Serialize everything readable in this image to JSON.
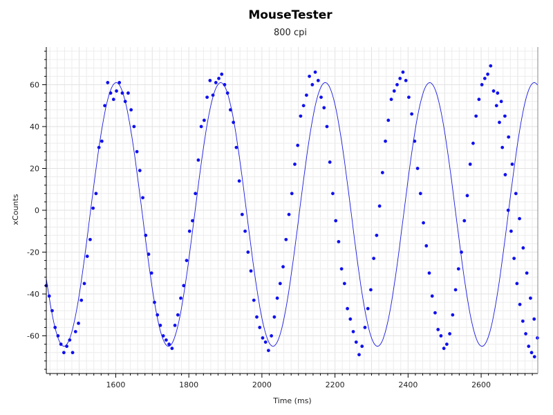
{
  "chart_data": {
    "type": "scatter",
    "title": "MouseTester",
    "subtitle": "800 cpi",
    "xlabel": "Time (ms)",
    "ylabel": "xCounts",
    "xlim": [
      1410,
      2755
    ],
    "ylim": [
      -78,
      78
    ],
    "x_ticks": [
      1600,
      1800,
      2000,
      2200,
      2400,
      2600
    ],
    "y_ticks": [
      -60,
      -40,
      -20,
      0,
      20,
      40,
      60
    ],
    "grid": true,
    "legend": "none",
    "colors": {
      "points": "#1010ee",
      "line": "#1818e0",
      "grid": "#ececec",
      "axis": "#000000"
    },
    "series": [
      {
        "fit_start_x": 1410,
        "fit_amplitude": 63,
        "fit_offset": -2,
        "fit_period_ms": 286,
        "fit_phase_rad": 3.65,
        "fit_step_ms": 3,
        "points": [
          [
            1410,
            -36
          ],
          [
            1418,
            -41
          ],
          [
            1426,
            -48
          ],
          [
            1434,
            -56
          ],
          [
            1442,
            -60
          ],
          [
            1450,
            -64
          ],
          [
            1458,
            -68
          ],
          [
            1466,
            -65
          ],
          [
            1474,
            -62
          ],
          [
            1482,
            -68
          ],
          [
            1490,
            -58
          ],
          [
            1498,
            -54
          ],
          [
            1506,
            -43
          ],
          [
            1514,
            -35
          ],
          [
            1522,
            -22
          ],
          [
            1530,
            -14
          ],
          [
            1538,
            1
          ],
          [
            1546,
            8
          ],
          [
            1554,
            30
          ],
          [
            1562,
            33
          ],
          [
            1570,
            50
          ],
          [
            1578,
            61
          ],
          [
            1586,
            56
          ],
          [
            1594,
            53
          ],
          [
            1602,
            57
          ],
          [
            1610,
            61
          ],
          [
            1618,
            56
          ],
          [
            1626,
            52
          ],
          [
            1634,
            56
          ],
          [
            1642,
            48
          ],
          [
            1650,
            40
          ],
          [
            1658,
            28
          ],
          [
            1666,
            19
          ],
          [
            1674,
            6
          ],
          [
            1682,
            -12
          ],
          [
            1690,
            -21
          ],
          [
            1698,
            -30
          ],
          [
            1706,
            -44
          ],
          [
            1714,
            -50
          ],
          [
            1722,
            -55
          ],
          [
            1730,
            -60
          ],
          [
            1738,
            -62
          ],
          [
            1746,
            -64
          ],
          [
            1754,
            -66
          ],
          [
            1762,
            -55
          ],
          [
            1770,
            -50
          ],
          [
            1778,
            -42
          ],
          [
            1786,
            -36
          ],
          [
            1794,
            -24
          ],
          [
            1802,
            -10
          ],
          [
            1810,
            -5
          ],
          [
            1818,
            8
          ],
          [
            1826,
            24
          ],
          [
            1834,
            40
          ],
          [
            1842,
            43
          ],
          [
            1850,
            54
          ],
          [
            1858,
            62
          ],
          [
            1866,
            55
          ],
          [
            1874,
            61
          ],
          [
            1882,
            63
          ],
          [
            1890,
            65
          ],
          [
            1898,
            60
          ],
          [
            1906,
            56
          ],
          [
            1914,
            48
          ],
          [
            1922,
            42
          ],
          [
            1930,
            30
          ],
          [
            1938,
            14
          ],
          [
            1946,
            -2
          ],
          [
            1954,
            -10
          ],
          [
            1962,
            -20
          ],
          [
            1970,
            -29
          ],
          [
            1978,
            -43
          ],
          [
            1986,
            -51
          ],
          [
            1994,
            -56
          ],
          [
            2002,
            -61
          ],
          [
            2010,
            -63
          ],
          [
            2018,
            -67
          ],
          [
            2026,
            -60
          ],
          [
            2034,
            -51
          ],
          [
            2042,
            -42
          ],
          [
            2050,
            -35
          ],
          [
            2058,
            -27
          ],
          [
            2066,
            -14
          ],
          [
            2074,
            -2
          ],
          [
            2082,
            8
          ],
          [
            2090,
            22
          ],
          [
            2098,
            31
          ],
          [
            2106,
            45
          ],
          [
            2114,
            50
          ],
          [
            2122,
            55
          ],
          [
            2130,
            64
          ],
          [
            2138,
            60
          ],
          [
            2146,
            66
          ],
          [
            2154,
            62
          ],
          [
            2162,
            54
          ],
          [
            2170,
            49
          ],
          [
            2178,
            40
          ],
          [
            2186,
            23
          ],
          [
            2194,
            8
          ],
          [
            2202,
            -5
          ],
          [
            2210,
            -15
          ],
          [
            2218,
            -28
          ],
          [
            2226,
            -35
          ],
          [
            2234,
            -47
          ],
          [
            2242,
            -52
          ],
          [
            2250,
            -58
          ],
          [
            2258,
            -63
          ],
          [
            2266,
            -69
          ],
          [
            2274,
            -65
          ],
          [
            2282,
            -56
          ],
          [
            2290,
            -47
          ],
          [
            2298,
            -38
          ],
          [
            2306,
            -23
          ],
          [
            2314,
            -12
          ],
          [
            2322,
            2
          ],
          [
            2330,
            18
          ],
          [
            2338,
            33
          ],
          [
            2346,
            43
          ],
          [
            2354,
            53
          ],
          [
            2362,
            57
          ],
          [
            2370,
            60
          ],
          [
            2378,
            63
          ],
          [
            2386,
            66
          ],
          [
            2394,
            62
          ],
          [
            2402,
            54
          ],
          [
            2410,
            46
          ],
          [
            2418,
            33
          ],
          [
            2426,
            20
          ],
          [
            2434,
            8
          ],
          [
            2442,
            -6
          ],
          [
            2450,
            -17
          ],
          [
            2458,
            -30
          ],
          [
            2466,
            -41
          ],
          [
            2474,
            -49
          ],
          [
            2482,
            -57
          ],
          [
            2490,
            -60
          ],
          [
            2498,
            -66
          ],
          [
            2506,
            -64
          ],
          [
            2514,
            -59
          ],
          [
            2522,
            -50
          ],
          [
            2530,
            -38
          ],
          [
            2538,
            -28
          ],
          [
            2546,
            -20
          ],
          [
            2554,
            -5
          ],
          [
            2562,
            7
          ],
          [
            2570,
            22
          ],
          [
            2578,
            32
          ],
          [
            2586,
            45
          ],
          [
            2594,
            53
          ],
          [
            2602,
            60
          ],
          [
            2610,
            63
          ],
          [
            2618,
            65
          ],
          [
            2626,
            69
          ],
          [
            2634,
            57
          ],
          [
            2642,
            50
          ],
          [
            2650,
            42
          ],
          [
            2658,
            30
          ],
          [
            2666,
            17
          ],
          [
            2674,
            0
          ],
          [
            2682,
            -10
          ],
          [
            2690,
            -23
          ],
          [
            2698,
            -35
          ],
          [
            2706,
            -45
          ],
          [
            2714,
            -53
          ],
          [
            2722,
            -59
          ],
          [
            2730,
            -65
          ],
          [
            2738,
            -68
          ],
          [
            2746,
            -70
          ],
          [
            2754,
            -61
          ],
          [
            2745,
            -52
          ],
          [
            2735,
            -42
          ],
          [
            2725,
            -30
          ],
          [
            2715,
            -18
          ],
          [
            2705,
            -4
          ],
          [
            2695,
            8
          ],
          [
            2685,
            22
          ],
          [
            2675,
            35
          ],
          [
            2665,
            45
          ],
          [
            2655,
            52
          ],
          [
            2645,
            56
          ]
        ]
      }
    ]
  }
}
